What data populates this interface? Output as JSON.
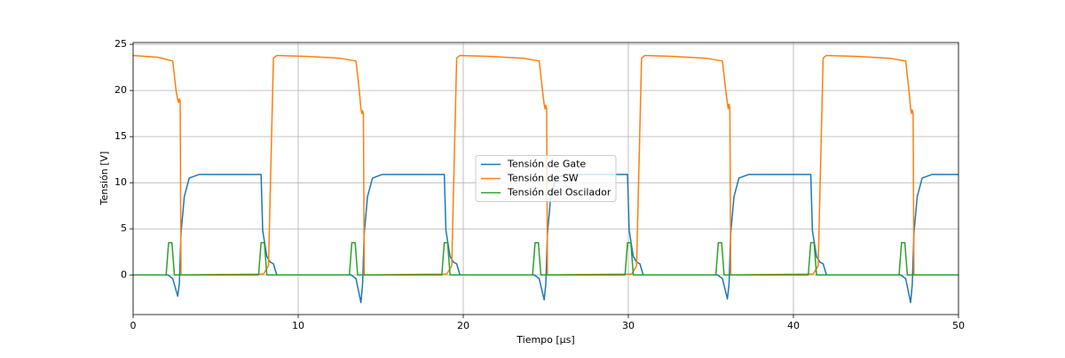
{
  "chart_data": {
    "type": "line",
    "xlabel": "Tiempo [μs]",
    "ylabel": "Tensión [V]",
    "xlim": [
      0,
      50
    ],
    "ylim": [
      -4.3,
      25.2
    ],
    "xticks": [
      0,
      10,
      20,
      30,
      40,
      50
    ],
    "yticks": [
      0,
      5,
      10,
      15,
      20,
      25
    ],
    "grid": true,
    "legend": "center",
    "series": [
      {
        "name": "Tensión de Gate",
        "color": "#1f77b4",
        "x": [
          0,
          2.1,
          2.4,
          2.7,
          2.8,
          2.9,
          3.1,
          3.4,
          4.0,
          7.75,
          7.85,
          8.1,
          8.3,
          8.5,
          8.7,
          13.2,
          13.5,
          13.8,
          13.9,
          14.0,
          14.2,
          14.5,
          15.1,
          18.85,
          18.95,
          19.2,
          19.4,
          19.6,
          19.8,
          24.3,
          24.6,
          24.9,
          25.0,
          25.1,
          25.3,
          25.6,
          26.2,
          29.95,
          30.05,
          30.3,
          30.5,
          30.7,
          30.9,
          35.4,
          35.7,
          36.0,
          36.1,
          36.2,
          36.4,
          36.7,
          37.3,
          41.05,
          41.15,
          41.4,
          41.6,
          41.8,
          42.0,
          46.5,
          46.8,
          47.1,
          47.2,
          47.3,
          47.5,
          47.8,
          48.4,
          50
        ],
        "values": [
          0,
          0,
          -0.4,
          -2.3,
          -1,
          4.5,
          8.5,
          10.5,
          10.9,
          10.9,
          4.8,
          2,
          1.4,
          1.2,
          0,
          0,
          -0.4,
          -3.0,
          -1,
          4.5,
          8.5,
          10.5,
          10.9,
          10.9,
          4.8,
          2,
          1.4,
          1.2,
          0,
          0,
          -0.4,
          -2.7,
          -1,
          4.5,
          8.5,
          10.5,
          10.9,
          10.9,
          4.8,
          2,
          1.4,
          1.2,
          0,
          0,
          -0.4,
          -2.6,
          -1,
          4.5,
          8.5,
          10.5,
          10.9,
          10.9,
          4.8,
          2,
          1.4,
          1.2,
          0,
          0,
          -0.4,
          -3.0,
          -1,
          4.5,
          8.5,
          10.5,
          10.9,
          10.9
        ]
      },
      {
        "name": "Tensión de SW",
        "color": "#ff7f0e",
        "x": [
          0,
          1.5,
          2.4,
          2.6,
          2.7,
          2.75,
          2.8,
          2.85,
          2.9,
          7.9,
          8.2,
          8.5,
          8.7,
          10.5,
          12.5,
          13.5,
          13.7,
          13.8,
          13.85,
          13.9,
          13.95,
          14.0,
          19.0,
          19.3,
          19.6,
          19.8,
          21.6,
          23.6,
          24.6,
          24.8,
          24.9,
          24.95,
          25.0,
          25.05,
          25.1,
          30.2,
          30.5,
          30.8,
          31.0,
          32.7,
          34.7,
          35.7,
          35.9,
          36.0,
          36.05,
          36.1,
          36.15,
          36.2,
          41.2,
          41.5,
          41.8,
          42.0,
          43.8,
          45.8,
          46.8,
          47.0,
          47.1,
          47.15,
          47.2,
          47.25,
          47.3,
          50
        ],
        "values": [
          23.8,
          23.6,
          23.2,
          20,
          19,
          18.7,
          19.1,
          18.9,
          0,
          0.1,
          1,
          23.5,
          23.8,
          23.7,
          23.5,
          23.2,
          20,
          18,
          17.5,
          17.8,
          17.5,
          0,
          0.1,
          1,
          23.5,
          23.8,
          23.7,
          23.5,
          23.2,
          20,
          18.5,
          18,
          18.4,
          18,
          0,
          0.1,
          1,
          23.5,
          23.8,
          23.7,
          23.5,
          23.2,
          20,
          18.6,
          18,
          18.5,
          18.1,
          0,
          0.1,
          1,
          23.5,
          23.8,
          23.7,
          23.5,
          23.2,
          20,
          18,
          17.5,
          17.9,
          17.5,
          0,
          0
        ]
      },
      {
        "name": "Tensión del Oscilador",
        "color": "#2ca02c",
        "x": [
          0,
          2.0,
          2.15,
          2.35,
          2.5,
          7.6,
          7.75,
          7.95,
          8.1,
          13.1,
          13.25,
          13.45,
          13.6,
          18.7,
          18.85,
          19.05,
          19.2,
          24.2,
          24.35,
          24.55,
          24.7,
          29.8,
          29.95,
          30.15,
          30.3,
          35.3,
          35.45,
          35.65,
          35.8,
          40.9,
          41.05,
          41.25,
          41.4,
          46.4,
          46.55,
          46.75,
          46.9,
          50
        ],
        "values": [
          0,
          0,
          3.5,
          3.5,
          0,
          0,
          3.5,
          3.5,
          0,
          0,
          3.5,
          3.5,
          0,
          0,
          3.5,
          3.5,
          0,
          0,
          3.5,
          3.5,
          0,
          0,
          3.5,
          3.5,
          0,
          0,
          3.5,
          3.5,
          0,
          0,
          3.5,
          3.5,
          0,
          0,
          3.5,
          3.5,
          0,
          0
        ]
      }
    ]
  }
}
